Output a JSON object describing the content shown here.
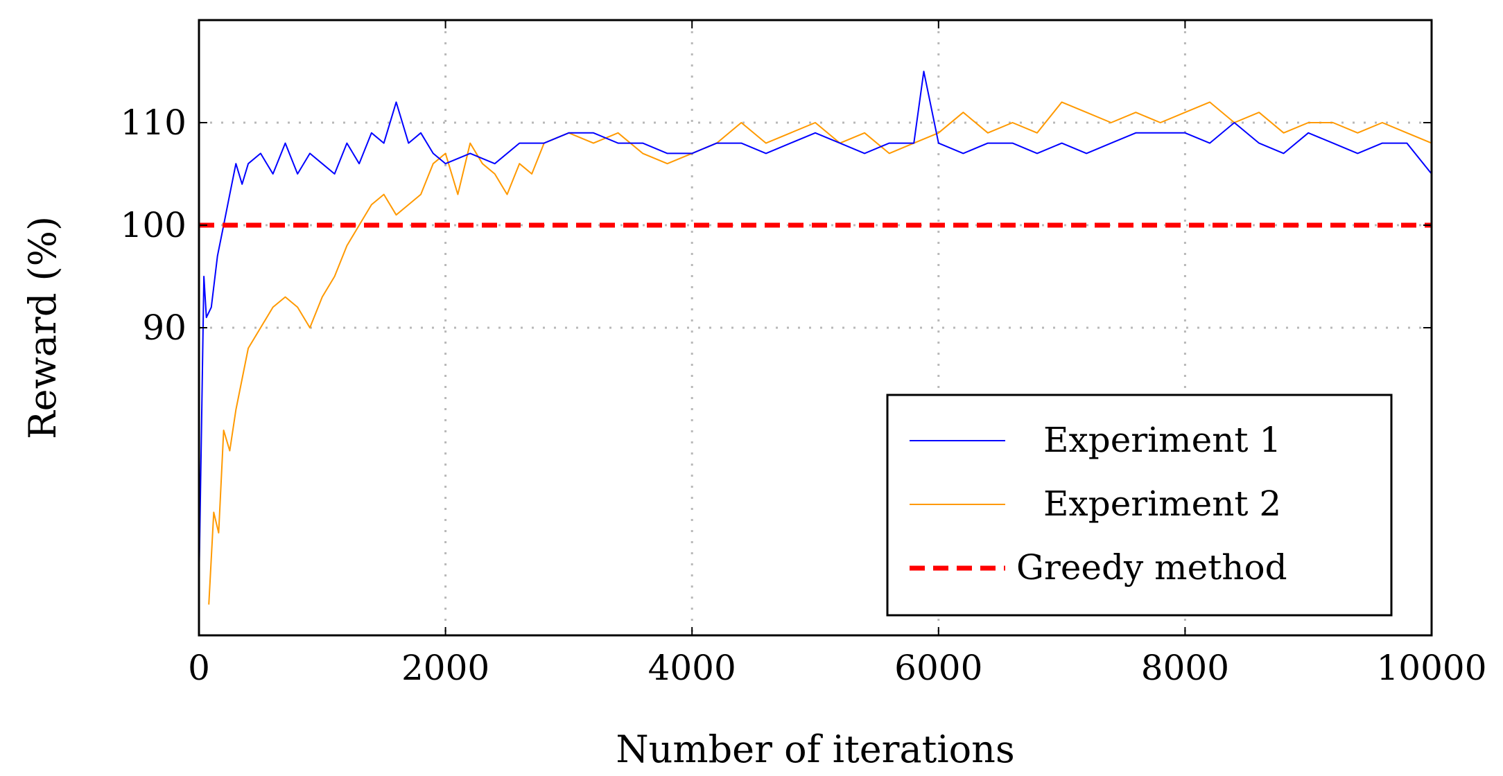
{
  "chart_data": {
    "type": "line",
    "title": "",
    "xlabel": "Number of iterations",
    "ylabel": "Reward (%)",
    "xlim": [
      0,
      10000
    ],
    "ylim": [
      60,
      120
    ],
    "xticks": [
      0,
      2000,
      4000,
      6000,
      8000,
      10000
    ],
    "xtick_labels": [
      "0",
      "2000",
      "4000",
      "6000",
      "8000",
      "10000"
    ],
    "yticks": [
      90,
      100,
      110
    ],
    "ytick_labels": [
      "90",
      "100",
      "110"
    ],
    "grid": true,
    "legend_position": "bottom-right",
    "series": [
      {
        "name": "Experiment 1",
        "color": "#0000ff",
        "style": "solid",
        "x": [
          0,
          20,
          40,
          60,
          100,
          150,
          200,
          250,
          300,
          350,
          400,
          500,
          600,
          700,
          800,
          900,
          1000,
          1100,
          1200,
          1300,
          1400,
          1500,
          1600,
          1700,
          1800,
          1900,
          2000,
          2200,
          2400,
          2600,
          2800,
          3000,
          3200,
          3400,
          3600,
          3800,
          4000,
          4200,
          4400,
          4600,
          4800,
          5000,
          5200,
          5400,
          5600,
          5800,
          5880,
          6000,
          6200,
          6400,
          6600,
          6800,
          7000,
          7200,
          7400,
          7600,
          7800,
          8000,
          8200,
          8400,
          8600,
          8800,
          9000,
          9200,
          9400,
          9600,
          9800,
          10000
        ],
        "values": [
          65,
          80,
          95,
          91,
          92,
          97,
          100,
          103,
          106,
          104,
          106,
          107,
          105,
          108,
          105,
          107,
          106,
          105,
          108,
          106,
          109,
          108,
          112,
          108,
          109,
          107,
          106,
          107,
          106,
          108,
          108,
          109,
          109,
          108,
          108,
          107,
          107,
          108,
          108,
          107,
          108,
          109,
          108,
          107,
          108,
          108,
          115,
          108,
          107,
          108,
          108,
          107,
          108,
          107,
          108,
          109,
          109,
          109,
          108,
          110,
          108,
          107,
          109,
          108,
          107,
          108,
          108,
          105
        ]
      },
      {
        "name": "Experiment 2",
        "color": "#ff9900",
        "style": "solid",
        "x": [
          80,
          120,
          160,
          200,
          250,
          300,
          350,
          400,
          500,
          600,
          700,
          800,
          900,
          1000,
          1100,
          1200,
          1300,
          1400,
          1500,
          1600,
          1700,
          1800,
          1900,
          2000,
          2100,
          2200,
          2300,
          2400,
          2500,
          2600,
          2700,
          2800,
          3000,
          3200,
          3400,
          3600,
          3800,
          4000,
          4200,
          4400,
          4600,
          4800,
          5000,
          5200,
          5400,
          5600,
          5800,
          6000,
          6200,
          6400,
          6600,
          6800,
          7000,
          7200,
          7400,
          7600,
          7800,
          8000,
          8200,
          8400,
          8600,
          8800,
          9000,
          9200,
          9400,
          9600,
          9800,
          10000
        ],
        "values": [
          63,
          72,
          70,
          80,
          78,
          82,
          85,
          88,
          90,
          92,
          93,
          92,
          90,
          93,
          95,
          98,
          100,
          102,
          103,
          101,
          102,
          103,
          106,
          107,
          103,
          108,
          106,
          105,
          103,
          106,
          105,
          108,
          109,
          108,
          109,
          107,
          106,
          107,
          108,
          110,
          108,
          109,
          110,
          108,
          109,
          107,
          108,
          109,
          111,
          109,
          110,
          109,
          112,
          111,
          110,
          111,
          110,
          111,
          112,
          110,
          111,
          109,
          110,
          110,
          109,
          110,
          109,
          108
        ]
      },
      {
        "name": "Greedy method",
        "color": "#ff0000",
        "style": "dashed",
        "x": [
          0,
          10000
        ],
        "values": [
          100,
          100
        ]
      }
    ]
  }
}
